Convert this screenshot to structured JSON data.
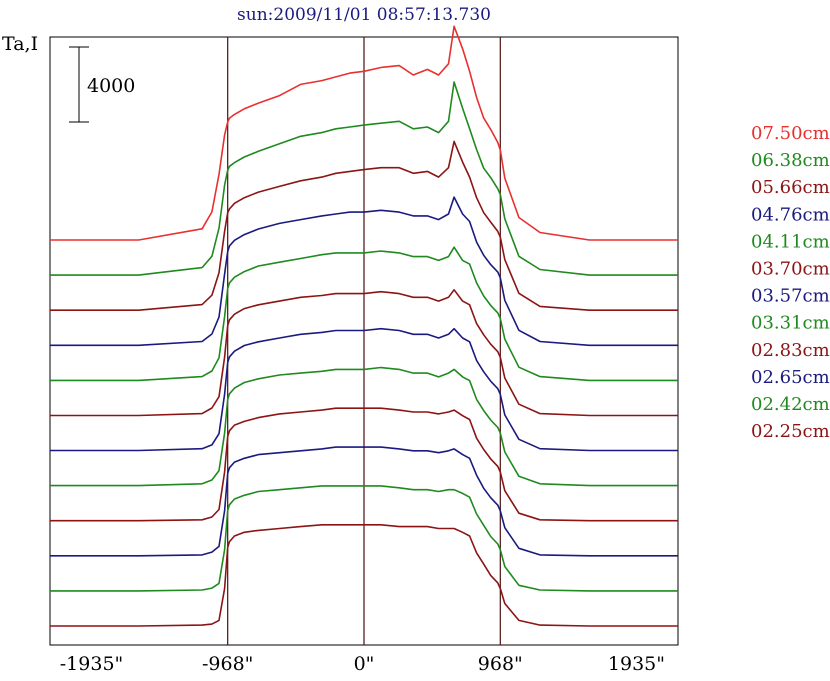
{
  "title": "sun:2009/11/01 08:57:13.730",
  "y_axis_label": "Ta,I",
  "scale_bar_label": "4000",
  "chart_data": {
    "type": "line",
    "title": "sun:2009/11/01 08:57:13.730",
    "ylabel": "Ta,I",
    "scale_bar": 4000,
    "xlim": [
      -2230,
      2230
    ],
    "x_ticks": [
      -1935,
      -968,
      0,
      968,
      1935
    ],
    "x_tick_labels": [
      "-1935\"",
      "-968\"",
      "0\"",
      "968\"",
      "1935\""
    ],
    "vertical_lines": [
      -968,
      0,
      968
    ],
    "grid": false,
    "legend_position": "right",
    "x": [
      -2230,
      -1600,
      -1150,
      -1080,
      -1030,
      -990,
      -968,
      -955,
      -920,
      -850,
      -750,
      -600,
      -450,
      -300,
      -200,
      -100,
      0,
      120,
      250,
      350,
      450,
      530,
      600,
      640,
      700,
      750,
      800,
      850,
      900,
      950,
      968,
      1000,
      1100,
      1250,
      1600,
      2230
    ],
    "series": [
      {
        "name": "07.50cm",
        "color": "#e8302f",
        "values": [
          0,
          0,
          600,
          1500,
          3500,
          5600,
          6300,
          6500,
          6700,
          7000,
          7300,
          7700,
          8300,
          8500,
          8700,
          8900,
          9000,
          9200,
          9300,
          8800,
          9100,
          8800,
          9400,
          11400,
          10200,
          9000,
          7600,
          6500,
          5900,
          5200,
          4800,
          3300,
          1200,
          400,
          0,
          0
        ]
      },
      {
        "name": "06.38cm",
        "color": "#1f8a1f",
        "values": [
          0,
          0,
          400,
          1000,
          2500,
          4800,
          5600,
          5800,
          6000,
          6300,
          6600,
          7000,
          7400,
          7600,
          7800,
          7900,
          8000,
          8100,
          8200,
          7800,
          7900,
          7600,
          8200,
          10300,
          8900,
          7800,
          6700,
          5700,
          5200,
          4600,
          4300,
          3000,
          1000,
          300,
          0,
          0
        ]
      },
      {
        "name": "05.66cm",
        "color": "#8b1414",
        "values": [
          0,
          0,
          300,
          800,
          2000,
          4200,
          5200,
          5400,
          5700,
          6000,
          6300,
          6600,
          6900,
          7100,
          7300,
          7400,
          7500,
          7600,
          7600,
          7300,
          7400,
          7100,
          7600,
          9000,
          7900,
          7100,
          6000,
          5200,
          4700,
          4200,
          3900,
          2700,
          900,
          200,
          0,
          0
        ]
      },
      {
        "name": "04.76cm",
        "color": "#1a1a80",
        "values": [
          0,
          0,
          200,
          600,
          1500,
          3800,
          5000,
          5300,
          5600,
          5900,
          6200,
          6500,
          6700,
          6900,
          7000,
          7100,
          7100,
          7200,
          7100,
          6900,
          6900,
          6700,
          7000,
          7900,
          7000,
          6600,
          5500,
          4800,
          4300,
          3900,
          3600,
          2400,
          800,
          200,
          0,
          0
        ]
      },
      {
        "name": "04.11cm",
        "color": "#1f8a1f",
        "values": [
          0,
          0,
          200,
          500,
          1200,
          3400,
          4900,
          5200,
          5500,
          5800,
          6100,
          6300,
          6500,
          6700,
          6800,
          6800,
          6800,
          6900,
          6800,
          6600,
          6600,
          6400,
          6600,
          7100,
          6400,
          6200,
          5200,
          4500,
          4000,
          3600,
          3300,
          2200,
          700,
          200,
          0,
          0
        ]
      },
      {
        "name": "03.70cm",
        "color": "#8b1414",
        "values": [
          0,
          0,
          100,
          400,
          1000,
          3100,
          4800,
          5100,
          5400,
          5700,
          5900,
          6100,
          6300,
          6400,
          6500,
          6500,
          6500,
          6600,
          6500,
          6300,
          6300,
          6100,
          6300,
          6700,
          6100,
          5900,
          4900,
          4300,
          3800,
          3400,
          3100,
          2000,
          600,
          100,
          0,
          0
        ]
      },
      {
        "name": "03.57cm",
        "color": "#1a1a80",
        "values": [
          0,
          0,
          100,
          300,
          900,
          3000,
          4700,
          5000,
          5300,
          5600,
          5800,
          6000,
          6200,
          6300,
          6400,
          6400,
          6400,
          6500,
          6400,
          6200,
          6200,
          6000,
          6200,
          6500,
          6000,
          5800,
          4800,
          4200,
          3700,
          3300,
          3000,
          1900,
          600,
          100,
          0,
          0
        ]
      },
      {
        "name": "03.31cm",
        "color": "#1f8a1f",
        "values": [
          0,
          0,
          100,
          300,
          800,
          2800,
          4600,
          4900,
          5200,
          5500,
          5700,
          5900,
          6000,
          6100,
          6200,
          6200,
          6200,
          6300,
          6200,
          6000,
          6000,
          5800,
          6000,
          6200,
          5800,
          5600,
          4600,
          4000,
          3500,
          3100,
          2800,
          1800,
          500,
          100,
          0,
          0
        ]
      },
      {
        "name": "02.83cm",
        "color": "#8b1414",
        "values": [
          0,
          0,
          50,
          200,
          600,
          2600,
          4500,
          4800,
          5100,
          5300,
          5500,
          5700,
          5800,
          5900,
          6000,
          6000,
          6000,
          6000,
          5900,
          5800,
          5800,
          5700,
          5800,
          5900,
          5600,
          5400,
          4400,
          3800,
          3300,
          2900,
          2600,
          1600,
          400,
          50,
          0,
          0
        ]
      },
      {
        "name": "02.65cm",
        "color": "#1a1a80",
        "values": [
          0,
          0,
          50,
          200,
          500,
          2400,
          4400,
          4700,
          5000,
          5200,
          5400,
          5500,
          5600,
          5700,
          5800,
          5800,
          5800,
          5800,
          5700,
          5600,
          5600,
          5500,
          5600,
          5700,
          5400,
          5200,
          4300,
          3600,
          3100,
          2700,
          2400,
          1500,
          400,
          50,
          0,
          0
        ]
      },
      {
        "name": "02.42cm",
        "color": "#1f8a1f",
        "values": [
          0,
          0,
          50,
          150,
          400,
          2200,
          4300,
          4600,
          4900,
          5100,
          5300,
          5400,
          5500,
          5600,
          5600,
          5600,
          5600,
          5600,
          5500,
          5400,
          5400,
          5300,
          5400,
          5400,
          5200,
          5000,
          4100,
          3500,
          2900,
          2500,
          2200,
          1300,
          300,
          50,
          0,
          0
        ]
      },
      {
        "name": "02.25cm",
        "color": "#8b1414",
        "values": [
          0,
          0,
          50,
          100,
          300,
          2000,
          4200,
          4500,
          4800,
          5000,
          5100,
          5200,
          5300,
          5400,
          5400,
          5400,
          5400,
          5400,
          5300,
          5300,
          5300,
          5200,
          5200,
          5200,
          5000,
          4800,
          3900,
          3300,
          2700,
          2300,
          2000,
          1200,
          300,
          50,
          0,
          0
        ]
      }
    ]
  }
}
